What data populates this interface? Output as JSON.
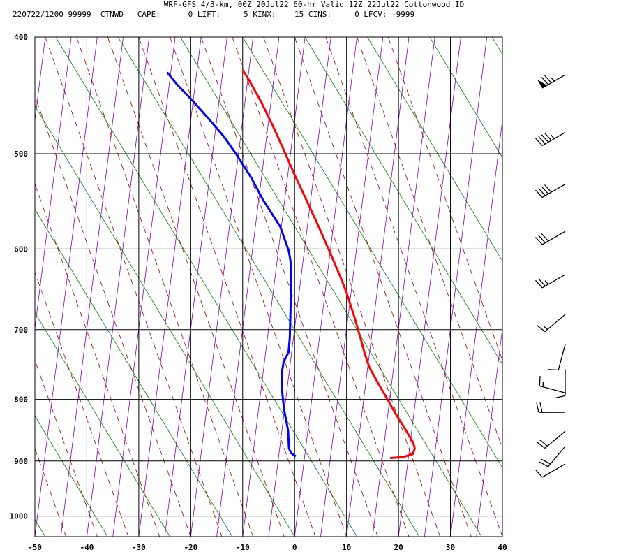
{
  "header": {
    "title": "WRF-GFS 4/3-km, 00Z 20Jul22 60-hr Valid 12Z 22Jul22 Cottonwood ID",
    "info": "220722/1200 99999  CTNWD   CAPE:      0 LIFT:     5 KINX:    15 CINS:     0 LFCV: -9999"
  },
  "chart_data": {
    "type": "line",
    "title": "WRF-GFS 4/3-km, 00Z 20Jul22 60-hr Valid 12Z 22Jul22 Cottonwood ID",
    "xlabel": "",
    "ylabel": "",
    "xlim": [
      -50,
      40
    ],
    "ylim": [
      1040,
      400
    ],
    "y_scale": "log",
    "grid": true,
    "x_ticks": [
      -50,
      -40,
      -30,
      -20,
      -10,
      0,
      10,
      20,
      30,
      40
    ],
    "y_ticks": [
      400,
      500,
      600,
      700,
      800,
      900,
      1000
    ],
    "series": [
      {
        "color": "#ff0000",
        "points": [
          [
            16.5,
            895
          ],
          [
            19,
            893
          ],
          [
            20.8,
            888
          ],
          [
            21,
            878
          ],
          [
            20.5,
            868
          ],
          [
            18.3,
            842
          ],
          [
            16.3,
            820
          ],
          [
            14.5,
            799
          ],
          [
            12.6,
            778
          ],
          [
            10.3,
            752
          ],
          [
            9.1,
            733
          ],
          [
            8,
            713
          ],
          [
            6.4,
            686
          ],
          [
            4.2,
            653
          ],
          [
            2.5,
            632
          ],
          [
            0,
            604
          ],
          [
            -3.1,
            572
          ],
          [
            -6.4,
            541
          ],
          [
            -9,
            518
          ],
          [
            -11.3,
            497
          ],
          [
            -14.2,
            473
          ],
          [
            -17,
            452
          ],
          [
            -19.8,
            434
          ],
          [
            -21.2,
            426
          ]
        ]
      },
      {
        "color": "#0000ff",
        "points": [
          [
            -1.7,
            892
          ],
          [
            -2.6,
            887
          ],
          [
            -3.2,
            879
          ],
          [
            -3.8,
            849
          ],
          [
            -5.1,
            815
          ],
          [
            -6,
            784
          ],
          [
            -6.4,
            759
          ],
          [
            -6.3,
            744
          ],
          [
            -5.6,
            731
          ],
          [
            -5.7,
            711
          ],
          [
            -6.2,
            676
          ],
          [
            -6.8,
            637
          ],
          [
            -7.4,
            614
          ],
          [
            -8,
            602
          ],
          [
            -10.2,
            575
          ],
          [
            -14.2,
            546
          ],
          [
            -16.9,
            524
          ],
          [
            -20.5,
            500
          ],
          [
            -23.2,
            484
          ],
          [
            -26.3,
            469
          ],
          [
            -30.3,
            451
          ],
          [
            -33.5,
            438
          ],
          [
            -35.7,
            428
          ]
        ]
      }
    ],
    "guide_lines": {
      "isotherm_color": "#000000",
      "skewed_isotherm_color": "#8000c0",
      "dry_adiabat_color": "#008000",
      "moist_adiabat_color": "#a00000"
    },
    "wind_barbs": [
      {
        "pressure": 430,
        "direction": 240,
        "speed_kt": 75
      },
      {
        "pressure": 480,
        "direction": 240,
        "speed_kt": 45
      },
      {
        "pressure": 530,
        "direction": 240,
        "speed_kt": 40
      },
      {
        "pressure": 580,
        "direction": 240,
        "speed_kt": 30
      },
      {
        "pressure": 630,
        "direction": 240,
        "speed_kt": 25
      },
      {
        "pressure": 680,
        "direction": 230,
        "speed_kt": 15
      },
      {
        "pressure": 720,
        "direction": 195,
        "speed_kt": 10
      },
      {
        "pressure": 755,
        "direction": 180,
        "speed_kt": 10
      },
      {
        "pressure": 790,
        "direction": 285,
        "speed_kt": 15
      },
      {
        "pressure": 820,
        "direction": 270,
        "speed_kt": 20
      },
      {
        "pressure": 850,
        "direction": 230,
        "speed_kt": 20
      },
      {
        "pressure": 875,
        "direction": 220,
        "speed_kt": 20
      },
      {
        "pressure": 905,
        "direction": 240,
        "speed_kt": 10
      }
    ]
  }
}
